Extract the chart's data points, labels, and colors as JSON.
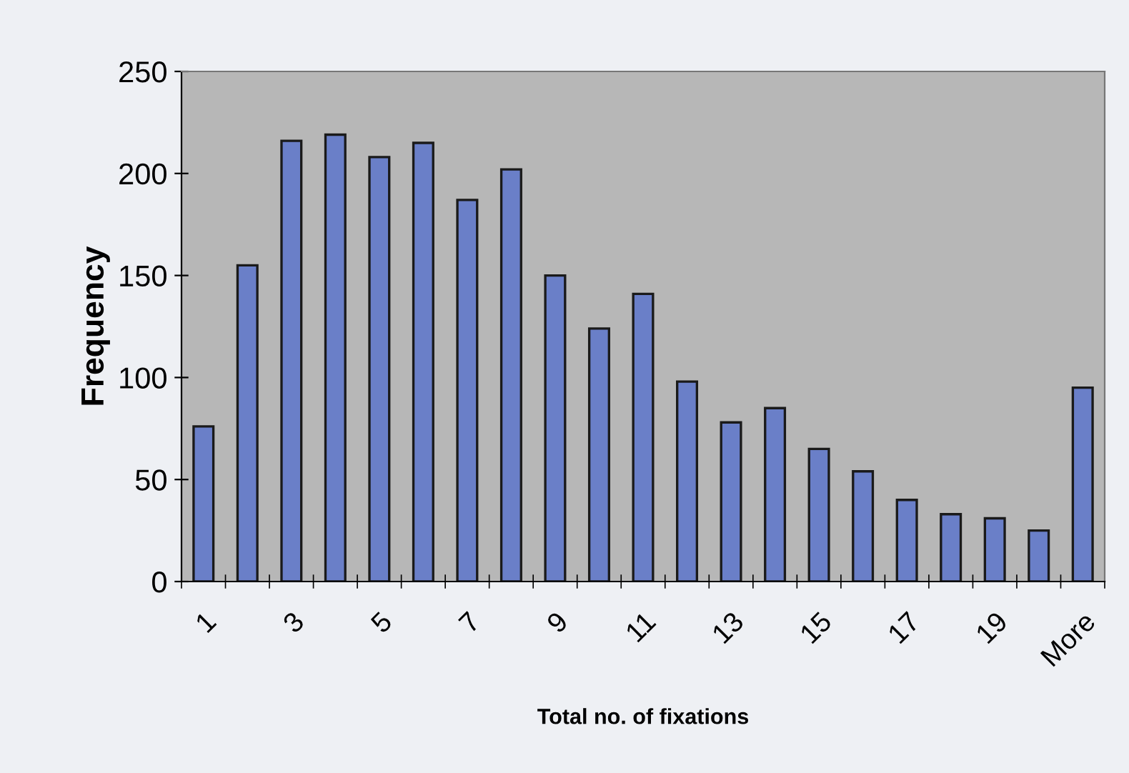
{
  "chart_data": {
    "type": "bar",
    "xlabel": "Total no. of fixations",
    "ylabel": "Frequency",
    "categories": [
      "1",
      null,
      "3",
      null,
      "5",
      null,
      "7",
      null,
      "9",
      null,
      "11",
      null,
      "13",
      null,
      "15",
      null,
      "17",
      null,
      "19",
      null,
      "More"
    ],
    "values": [
      76,
      155,
      216,
      219,
      208,
      215,
      187,
      202,
      150,
      124,
      141,
      98,
      78,
      85,
      65,
      54,
      40,
      33,
      31,
      25,
      95
    ],
    "color": "#6a7fc8",
    "ylim": [
      0,
      250
    ],
    "yticks": [
      0,
      50,
      100,
      150,
      200,
      250
    ],
    "grid": false,
    "legend": false
  }
}
